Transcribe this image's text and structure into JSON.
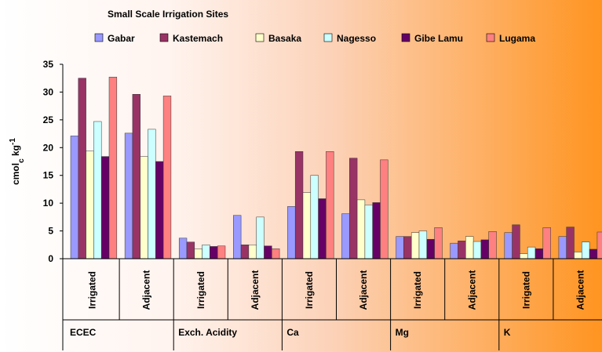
{
  "chart_data": {
    "type": "bar",
    "legend_title": "Small Scale Irrigation Sites",
    "y_label": [
      "cmol",
      "c",
      " kg",
      "-1"
    ],
    "categories": [
      "Irrigated",
      "Adjacent",
      "Irrigated",
      "Adjacent",
      "Irrigated",
      "Adjacent",
      "Irrigated",
      "Adjacent",
      "Irrigated",
      "Adjacent"
    ],
    "groups": [
      "ECEC",
      "Exch. Acidity",
      "Ca",
      "Mg",
      "K"
    ],
    "series": [
      {
        "name": "Gabar",
        "color": "#9999ff",
        "values": [
          22.1,
          22.6,
          3.7,
          7.8,
          9.4,
          8.1,
          4.0,
          2.8,
          4.7,
          4.0
        ]
      },
      {
        "name": "Kastemach",
        "color": "#993366",
        "values": [
          32.5,
          29.6,
          3.0,
          2.5,
          19.3,
          18.1,
          4.0,
          3.2,
          6.1,
          5.7
        ]
      },
      {
        "name": "Basaka",
        "color": "#ffffcc",
        "values": [
          19.4,
          18.4,
          1.8,
          2.5,
          11.9,
          10.6,
          4.7,
          4.0,
          0.9,
          1.2
        ]
      },
      {
        "name": "Nagesso",
        "color": "#ccffff",
        "values": [
          24.7,
          23.3,
          2.5,
          7.5,
          15.0,
          9.7,
          5.0,
          3.1,
          2.1,
          3.0
        ]
      },
      {
        "name": "Gibe Lamu",
        "color": "#660066",
        "values": [
          18.4,
          17.5,
          2.2,
          2.3,
          10.8,
          10.1,
          3.5,
          3.4,
          1.8,
          1.7
        ]
      },
      {
        "name": "Lugama",
        "color": "#ff8080",
        "values": [
          32.7,
          29.3,
          2.3,
          1.8,
          19.3,
          17.8,
          5.6,
          4.9,
          5.6,
          4.8
        ]
      }
    ],
    "ylim": [
      0,
      35
    ],
    "yticks": [
      0,
      5,
      10,
      15,
      20,
      25,
      30,
      35
    ],
    "legend": "top"
  }
}
